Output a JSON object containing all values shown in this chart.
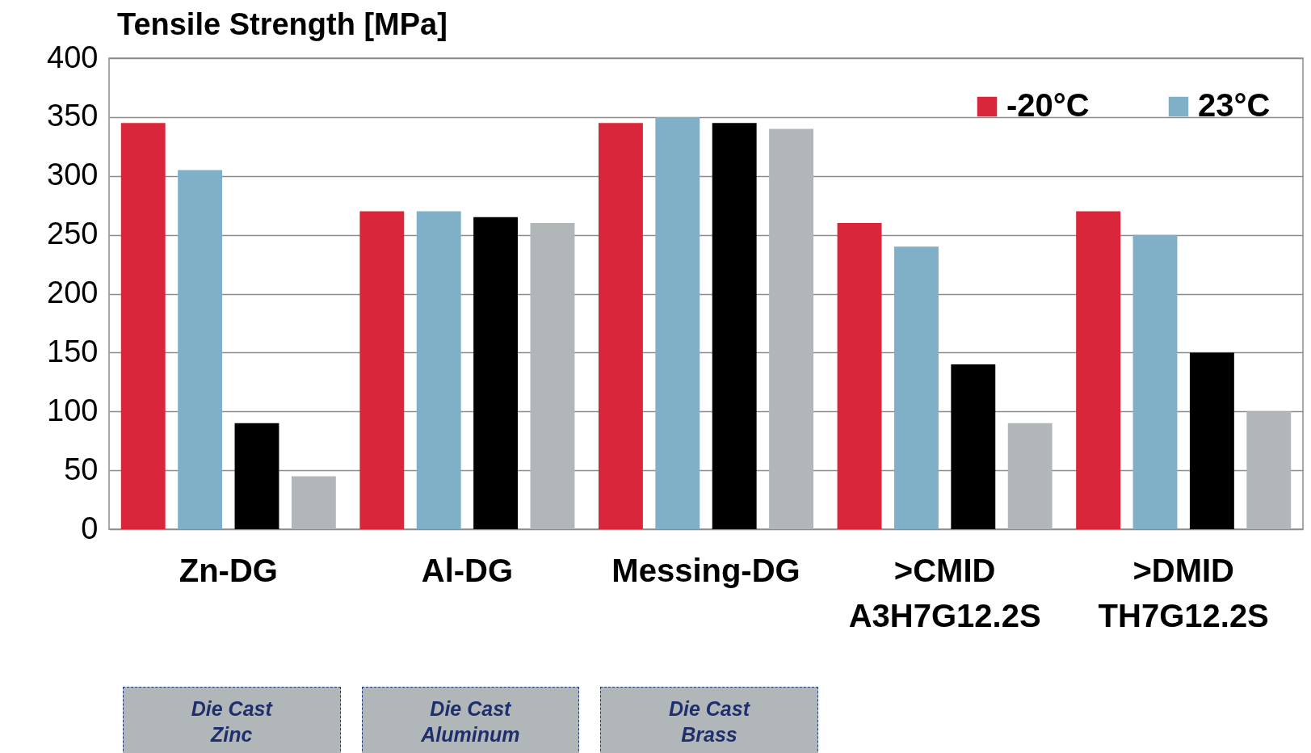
{
  "chart_data": {
    "type": "bar",
    "title": "Tensile Strength [MPa]",
    "categories": [
      "Zn-DG",
      "Al-DG",
      "Messing-DG",
      ">CMID\nA3H7G12.2S",
      ">DMID\nTH7G12.2S"
    ],
    "series": [
      {
        "name": "-20°C",
        "color": "#d9263a",
        "values": [
          345,
          270,
          345,
          260,
          270
        ]
      },
      {
        "name": "23°C",
        "color": "#7fb0c7",
        "values": [
          305,
          270,
          350,
          240,
          250
        ]
      },
      {
        "color": "#000000",
        "values": [
          90,
          265,
          345,
          140,
          150
        ]
      },
      {
        "color": "#b1b7b9",
        "values": [
          45,
          260,
          340,
          90,
          100
        ]
      }
    ],
    "ylim": [
      0,
      400
    ],
    "yticks": [
      0,
      50,
      100,
      150,
      200,
      250,
      300,
      350,
      400
    ],
    "grid": "y",
    "legend": "top right",
    "annotations": [
      "Die Cast Zinc",
      "Die Cast Aluminum",
      "Die Cast Brass"
    ]
  }
}
